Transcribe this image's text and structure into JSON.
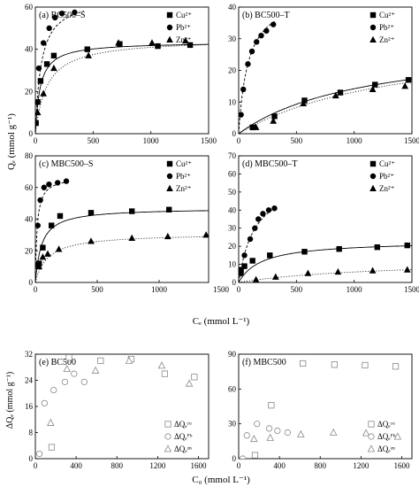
{
  "figure": {
    "upper_ylabel": "Qₑ (mmol g⁻¹)",
    "upper_xlabel": "Cₑ (mmol L⁻¹)",
    "lower_ylabel": "ΔQₑ (mmol g⁻¹)",
    "lower_xlabel": "C₀ (mmol L⁻¹)"
  },
  "chart_data": [
    {
      "type": "scatter",
      "title": "(a) BC500–S",
      "xlim": [
        0,
        1500
      ],
      "ylim": [
        0,
        60
      ],
      "xticks": [
        0,
        500,
        1000,
        1500
      ],
      "yticks": [
        0,
        20,
        40,
        60
      ],
      "legend": "right",
      "series": [
        {
          "name": "Cu²⁺",
          "marker": "square",
          "points": [
            [
              5,
              5
            ],
            [
              20,
              15
            ],
            [
              45,
              25
            ],
            [
              100,
              33
            ],
            [
              160,
              37
            ],
            [
              450,
              40
            ],
            [
              730,
              42.5
            ],
            [
              1060,
              41.5
            ],
            [
              1340,
              42
            ]
          ],
          "fit": {
            "kind": "langmuir",
            "qmax": 43.5,
            "k": 0.024,
            "style": "solid"
          }
        },
        {
          "name": "Pb²⁺",
          "marker": "circle",
          "points": [
            [
              5,
              5
            ],
            [
              15,
              15
            ],
            [
              30,
              31
            ],
            [
              70,
              43
            ],
            [
              120,
              50
            ],
            [
              170,
              55
            ],
            [
              230,
              57
            ],
            [
              340,
              57.5
            ]
          ],
          "fit": {
            "kind": "langmuir",
            "qmax": 65,
            "k": 0.02,
            "style": "dashed",
            "xmax": 420
          }
        },
        {
          "name": "Zn²⁺",
          "marker": "triangle",
          "points": [
            [
              20,
              10
            ],
            [
              70,
              19
            ],
            [
              160,
              31
            ],
            [
              460,
              37
            ],
            [
              720,
              43
            ],
            [
              1010,
              43
            ],
            [
              1300,
              44
            ]
          ],
          "fit": {
            "kind": "langmuir",
            "qmax": 45,
            "k": 0.01,
            "style": "dotted"
          }
        }
      ]
    },
    {
      "type": "scatter",
      "title": "(b) BC500–T",
      "xlim": [
        0,
        1500
      ],
      "ylim": [
        0,
        40
      ],
      "xticks": [
        0,
        500,
        1000,
        1500
      ],
      "yticks": [
        0,
        10,
        20,
        30,
        40
      ],
      "legend": "right",
      "series": [
        {
          "name": "Cu²⁺",
          "marker": "square",
          "points": [
            [
              120,
              2
            ],
            [
              310,
              5.5
            ],
            [
              570,
              10.5
            ],
            [
              880,
              13
            ],
            [
              1180,
              15.5
            ],
            [
              1470,
              17
            ]
          ],
          "fit": {
            "kind": "langmuir",
            "qmax": 30,
            "k": 0.0009,
            "style": "solid"
          }
        },
        {
          "name": "Pb²⁺",
          "marker": "circle",
          "points": [
            [
              20,
              6
            ],
            [
              40,
              14
            ],
            [
              80,
              22
            ],
            [
              115,
              26
            ],
            [
              155,
              29
            ],
            [
              195,
              31
            ],
            [
              240,
              32.5
            ],
            [
              300,
              34.5
            ]
          ],
          "fit": {
            "kind": "langmuir",
            "qmax": 45,
            "k": 0.012,
            "style": "dashed",
            "xmax": 320
          }
        },
        {
          "name": "Zn²⁺",
          "marker": "triangle",
          "points": [
            [
              150,
              2
            ],
            [
              300,
              4
            ],
            [
              560,
              9.5
            ],
            [
              840,
              12
            ],
            [
              1160,
              14
            ],
            [
              1440,
              15
            ]
          ],
          "fit": {
            "kind": "langmuir",
            "qmax": 32,
            "k": 0.0007,
            "style": "dotted"
          }
        }
      ]
    },
    {
      "type": "scatter",
      "title": "(c) MBC500–S",
      "xlim": [
        0,
        1400
      ],
      "ylim": [
        0,
        80
      ],
      "xticks": [
        0,
        500,
        1000,
        1500
      ],
      "yticks": [
        0,
        20,
        40,
        60,
        80
      ],
      "legend": "right",
      "series": [
        {
          "name": "Cu²⁺",
          "marker": "square",
          "points": [
            [
              30,
              12
            ],
            [
              60,
              22
            ],
            [
              130,
              36
            ],
            [
              200,
              42
            ],
            [
              450,
              44
            ],
            [
              780,
              45
            ],
            [
              1080,
              46
            ]
          ],
          "fit": {
            "kind": "langmuir",
            "qmax": 47,
            "k": 0.02,
            "style": "solid"
          }
        },
        {
          "name": "Pb²⁺",
          "marker": "circle",
          "points": [
            [
              10,
              11
            ],
            [
              20,
              36
            ],
            [
              40,
              52
            ],
            [
              70,
              60
            ],
            [
              110,
              62
            ],
            [
              180,
              63
            ],
            [
              250,
              64
            ]
          ],
          "fit": {
            "kind": "langmuir",
            "qmax": 67,
            "k": 0.07,
            "style": "dashed",
            "xmax": 260
          }
        },
        {
          "name": "Zn²⁺",
          "marker": "triangle",
          "points": [
            [
              30,
              10
            ],
            [
              60,
              16
            ],
            [
              100,
              18
            ],
            [
              190,
              21
            ],
            [
              450,
              26
            ],
            [
              780,
              28
            ],
            [
              1070,
              29
            ],
            [
              1380,
              30
            ]
          ],
          "fit": {
            "kind": "langmuir",
            "qmax": 31,
            "k": 0.01,
            "style": "dotted"
          }
        }
      ]
    },
    {
      "type": "scatter",
      "title": "(d) MBC500–T",
      "xlim": [
        0,
        1500
      ],
      "ylim": [
        0,
        70
      ],
      "xticks": [
        0,
        500,
        1000,
        1500
      ],
      "yticks": [
        0,
        10,
        20,
        30,
        40,
        50,
        60,
        70
      ],
      "legend": "right",
      "series": [
        {
          "name": "Cu²⁺",
          "marker": "square",
          "points": [
            [
              20,
              7
            ],
            [
              50,
              9
            ],
            [
              120,
              12
            ],
            [
              270,
              15
            ],
            [
              570,
              17
            ],
            [
              870,
              18.5
            ],
            [
              1200,
              19.5
            ],
            [
              1460,
              20.5
            ]
          ],
          "fit": {
            "kind": "langmuir",
            "qmax": 23,
            "k": 0.005,
            "style": "solid"
          }
        },
        {
          "name": "Pb²⁺",
          "marker": "circle",
          "points": [
            [
              20,
              5
            ],
            [
              50,
              15
            ],
            [
              100,
              24
            ],
            [
              140,
              30
            ],
            [
              170,
              35
            ],
            [
              210,
              38
            ],
            [
              260,
              40
            ],
            [
              310,
              41
            ]
          ],
          "fit": {
            "kind": "langmuir",
            "qmax": 60,
            "k": 0.007,
            "style": "dashed",
            "xmax": 330
          }
        },
        {
          "name": "Zn²⁺",
          "marker": "triangle",
          "points": [
            [
              150,
              1.5
            ],
            [
              320,
              3
            ],
            [
              600,
              5
            ],
            [
              860,
              5.8
            ],
            [
              1160,
              6.5
            ],
            [
              1460,
              7
            ]
          ],
          "fit": {
            "kind": "langmuir",
            "qmax": 13,
            "k": 0.0008,
            "style": "dotted"
          }
        }
      ]
    },
    {
      "type": "scatter",
      "title": "(e) BC500",
      "xlim": [
        0,
        1700
      ],
      "ylim": [
        0,
        32
      ],
      "xticks": [
        0,
        400,
        800,
        1200,
        1600
      ],
      "yticks": [
        0,
        8,
        16,
        24,
        32
      ],
      "legend": "bottom-right",
      "series": [
        {
          "name": "ΔQₑᶜᵘ",
          "marker": "square-open",
          "points": [
            [
              160,
              3.5
            ],
            [
              330,
              31
            ],
            [
              640,
              30
            ],
            [
              940,
              30.5
            ],
            [
              1270,
              26
            ],
            [
              1560,
              25
            ]
          ]
        },
        {
          "name": "ΔQₑᴾᵇ",
          "marker": "circle-open",
          "points": [
            [
              40,
              1.5
            ],
            [
              90,
              17
            ],
            [
              180,
              21
            ],
            [
              290,
              23.5
            ],
            [
              380,
              26
            ],
            [
              480,
              23.5
            ]
          ]
        },
        {
          "name": "ΔQₑᶻⁿ",
          "marker": "triangle-open",
          "points": [
            [
              150,
              11
            ],
            [
              310,
              27.5
            ],
            [
              590,
              27
            ],
            [
              920,
              30
            ],
            [
              1240,
              28.5
            ],
            [
              1510,
              23
            ]
          ]
        }
      ]
    },
    {
      "type": "scatter",
      "title": "(f) MBC500",
      "xlim": [
        0,
        1700
      ],
      "ylim": [
        0,
        90
      ],
      "xticks": [
        0,
        400,
        800,
        1200,
        1600
      ],
      "yticks": [
        0,
        30,
        60,
        90
      ],
      "legend": "bottom-right",
      "series": [
        {
          "name": "ΔQₑᶜᵘ",
          "marker": "square-open",
          "points": [
            [
              160,
              3
            ],
            [
              320,
              46
            ],
            [
              630,
              82
            ],
            [
              940,
              81
            ],
            [
              1240,
              80.5
            ],
            [
              1540,
              79.5
            ]
          ]
        },
        {
          "name": "ΔQₑᴾᵇ",
          "marker": "circle-open",
          "points": [
            [
              40,
              0
            ],
            [
              80,
              20
            ],
            [
              180,
              30
            ],
            [
              300,
              26
            ],
            [
              380,
              24
            ],
            [
              480,
              22.5
            ]
          ]
        },
        {
          "name": "ΔQₑᶻⁿ",
          "marker": "triangle-open",
          "points": [
            [
              150,
              17
            ],
            [
              310,
              18
            ],
            [
              610,
              21
            ],
            [
              930,
              22.5
            ],
            [
              1250,
              22
            ],
            [
              1560,
              19
            ]
          ]
        }
      ]
    }
  ]
}
